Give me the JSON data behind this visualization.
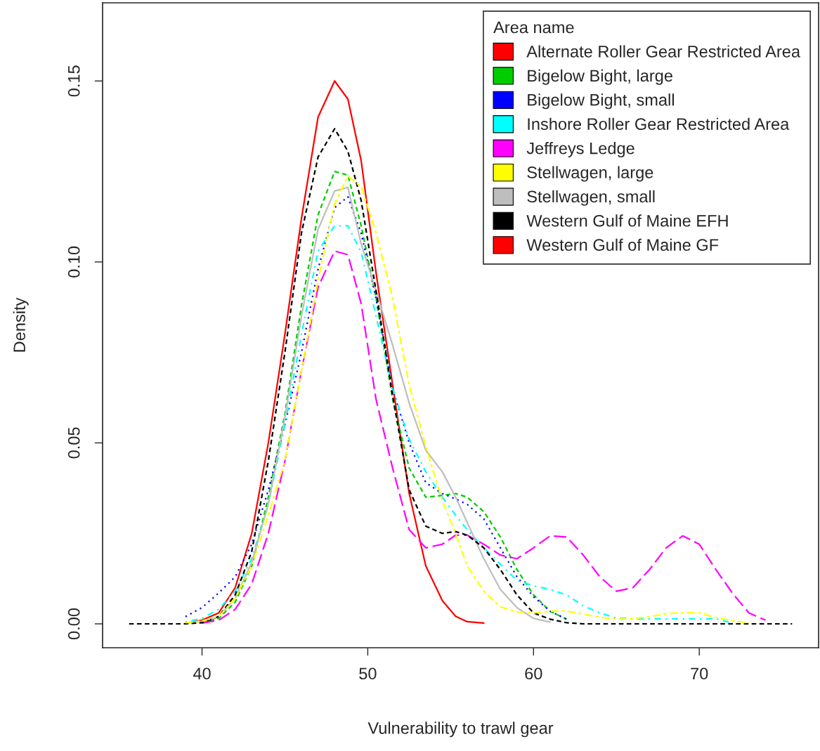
{
  "chart_data": {
    "type": "line",
    "xlabel": "Vulnerability to trawl gear",
    "ylabel": "Density",
    "legend_title": "Area name",
    "legend": "top right",
    "grid": false,
    "xlim": [
      34.0,
      77.2
    ],
    "ylim": [
      -0.0066,
      0.1716
    ],
    "xticks": [
      40,
      50,
      60,
      70
    ],
    "yticks": [
      {
        "value": 0,
        "label": "0.00"
      },
      {
        "value": 0.05,
        "label": "0.05"
      },
      {
        "value": 0.1,
        "label": "0.10"
      },
      {
        "value": 0.15,
        "label": "0.15"
      }
    ],
    "x": [
      35.6,
      38,
      39,
      40,
      41,
      42,
      43,
      44,
      45,
      46,
      47,
      48,
      48.8,
      49.6,
      50.5,
      51.5,
      52.5,
      53.5,
      54.5,
      55.3,
      56,
      57,
      58,
      59,
      60,
      61,
      62,
      63,
      64,
      65,
      66,
      67,
      68,
      69,
      70,
      71,
      72,
      73,
      74,
      75.6
    ],
    "series": [
      {
        "name": "Alternate Roller Gear Restricted Area",
        "color": "#ff0000",
        "line_style": "solid",
        "values": [
          null,
          null,
          0.0002,
          0.001,
          0.003,
          0.01,
          0.025,
          0.05,
          0.08,
          0.112,
          0.14,
          0.15,
          0.145,
          0.128,
          0.097,
          0.066,
          0.036,
          0.016,
          0.0064,
          0.0021,
          0.0006,
          0.0002,
          null,
          null,
          null,
          null,
          null,
          null,
          null,
          null,
          null,
          null,
          null,
          null,
          null,
          null,
          null,
          null,
          null,
          null
        ]
      },
      {
        "name": "Bigelow Bight, large",
        "color": "#00cd00",
        "line_style": "dashed",
        "values": [
          null,
          null,
          null,
          0.0003,
          0.0015,
          0.006,
          0.016,
          0.035,
          0.058,
          0.088,
          0.113,
          0.125,
          0.124,
          0.11,
          0.09,
          0.062,
          0.043,
          0.035,
          0.0355,
          0.036,
          0.035,
          0.031,
          0.024,
          0.015,
          0.008,
          0.0035,
          0.0013,
          null,
          null,
          null,
          null,
          null,
          null,
          null,
          null,
          null,
          null,
          null,
          null,
          null
        ]
      },
      {
        "name": "Bigelow Bight, small",
        "color": "#0000ff",
        "line_style": "dotted",
        "values": [
          null,
          null,
          0.002,
          0.0045,
          0.0085,
          0.013,
          0.022,
          0.037,
          0.055,
          0.075,
          0.098,
          0.115,
          0.118,
          0.108,
          0.09,
          0.065,
          0.05,
          0.039,
          0.036,
          0.0345,
          0.033,
          0.029,
          0.021,
          0.013,
          0.0075,
          0.0035,
          0.0012,
          null,
          null,
          null,
          null,
          null,
          null,
          null,
          null,
          null,
          null,
          null,
          null,
          null
        ]
      },
      {
        "name": "Inshore Roller Gear Restricted Area",
        "color": "#00ffff",
        "line_style": "dashdot",
        "values": [
          null,
          null,
          0.0005,
          0.0015,
          0.004,
          0.009,
          0.018,
          0.033,
          0.055,
          0.08,
          0.103,
          0.11,
          0.11,
          0.1027,
          0.085,
          0.065,
          0.051,
          0.042,
          0.035,
          0.03,
          0.026,
          0.021,
          0.0165,
          0.012,
          0.0105,
          0.0095,
          0.008,
          0.005,
          0.003,
          0.0016,
          0.0014,
          0.0014,
          0.0014,
          0.0014,
          0.0014,
          0.0014,
          0.0002,
          null,
          null,
          null
        ]
      },
      {
        "name": "Jeffreys Ledge",
        "color": "#ff00ff",
        "line_style": "longdash",
        "values": [
          null,
          null,
          null,
          0.0002,
          0.001,
          0.004,
          0.011,
          0.025,
          0.045,
          0.07,
          0.093,
          0.103,
          0.102,
          0.0885,
          0.062,
          0.043,
          0.026,
          0.021,
          0.022,
          0.0245,
          0.0245,
          0.022,
          0.019,
          0.018,
          0.021,
          0.0243,
          0.024,
          0.019,
          0.013,
          0.009,
          0.01,
          0.015,
          0.021,
          0.0243,
          0.022,
          0.015,
          0.0085,
          0.003,
          0.001,
          null
        ]
      },
      {
        "name": "Stellwagen, large",
        "color": "#ffff00",
        "line_style": "twodash",
        "values": [
          null,
          null,
          0.0003,
          0.0008,
          0.002,
          0.007,
          0.016,
          0.03,
          0.045,
          0.07,
          0.095,
          0.116,
          0.1237,
          0.1208,
          0.108,
          0.09,
          0.066,
          0.049,
          0.034,
          0.025,
          0.016,
          0.009,
          0.0047,
          0.0033,
          0.003,
          0.0035,
          0.0035,
          0.0027,
          0.0018,
          0.0013,
          0.0014,
          0.002,
          0.0028,
          0.0031,
          0.003,
          0.0018,
          0.0009,
          0.0002,
          null,
          null
        ]
      },
      {
        "name": "Stellwagen, small",
        "color": "#bebebe",
        "line_style": "solid",
        "values": [
          null,
          null,
          0.0002,
          0.0007,
          0.002,
          0.007,
          0.017,
          0.033,
          0.057,
          0.085,
          0.109,
          0.1196,
          0.1206,
          0.105,
          0.092,
          0.077,
          0.061,
          0.048,
          0.042,
          0.035,
          0.028,
          0.018,
          0.0095,
          0.0045,
          0.0015,
          0.0005,
          null,
          null,
          null,
          null,
          null,
          null,
          null,
          null,
          null,
          null,
          null,
          null,
          null,
          null
        ]
      },
      {
        "name": "Western Gulf of Maine EFH",
        "color": "#000000",
        "line_style": "dashed",
        "values": [
          0,
          0,
          0,
          0.0003,
          0.002,
          0.008,
          0.02,
          0.045,
          0.075,
          0.108,
          0.129,
          0.1368,
          0.1306,
          0.117,
          0.092,
          0.063,
          0.037,
          0.027,
          0.025,
          0.0255,
          0.0245,
          0.021,
          0.015,
          0.008,
          0.003,
          0.0013,
          0.0003,
          0,
          0,
          0,
          0,
          0,
          0,
          0,
          0,
          0,
          0,
          0,
          0,
          0
        ]
      },
      {
        "name": "Western Gulf of Maine GF",
        "color": "#ff0000",
        "line_style": "dotted",
        "values": [
          null,
          null,
          null,
          null,
          null,
          null,
          null,
          null,
          null,
          null,
          null,
          null,
          null,
          null,
          null,
          null,
          null,
          null,
          null,
          null,
          null,
          null,
          null,
          null,
          null,
          null,
          null,
          null,
          null,
          null,
          null,
          null,
          null,
          null,
          null,
          null,
          null,
          null,
          null,
          null
        ]
      }
    ]
  }
}
